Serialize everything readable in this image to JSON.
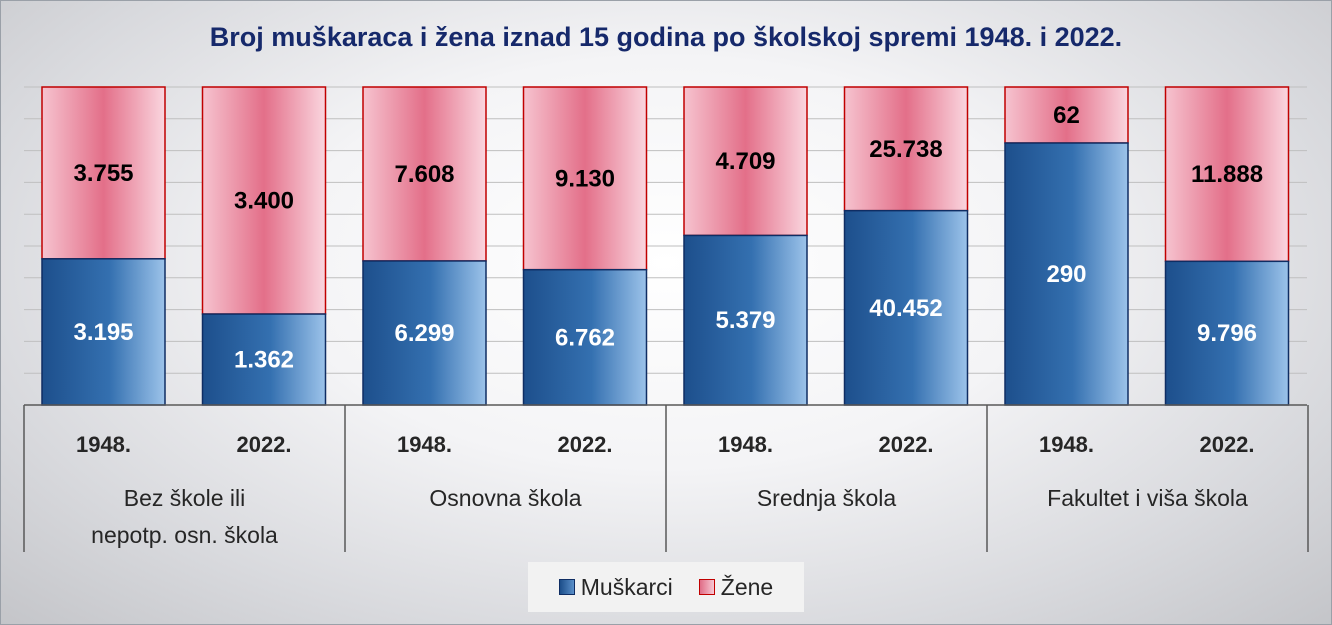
{
  "chart_data": {
    "type": "bar",
    "stacked": true,
    "normalized": true,
    "title": "Broj muškaraca i žena iznad 15 godina po školskoj spremi 1948. i 2022.",
    "groups": [
      {
        "label": "Bez škole ili nepotp. osn. škola",
        "label_lines": [
          "Bez škole ili",
          "nepotp. osn. škola"
        ],
        "categories": [
          "1948.",
          "2022."
        ]
      },
      {
        "label": "Osnovna škola",
        "label_lines": [
          "Osnovna škola"
        ],
        "categories": [
          "1948.",
          "2022."
        ]
      },
      {
        "label": "Srednja škola",
        "label_lines": [
          "Srednja škola"
        ],
        "categories": [
          "1948.",
          "2022."
        ]
      },
      {
        "label": "Fakultet i viša škola",
        "label_lines": [
          "Fakultet i viša škola"
        ],
        "categories": [
          "1948.",
          "2022."
        ]
      }
    ],
    "categories": [
      "1948.",
      "2022.",
      "1948.",
      "2022.",
      "1948.",
      "2022.",
      "1948.",
      "2022."
    ],
    "series": [
      {
        "name": "Muškarci",
        "values": [
          3195,
          1362,
          6299,
          6762,
          5379,
          40452,
          290,
          9796
        ],
        "labels": [
          "3.195",
          "1.362",
          "6.299",
          "6.762",
          "5.379",
          "40.452",
          "290",
          "9.796"
        ]
      },
      {
        "name": "Žene",
        "values": [
          3755,
          3400,
          7608,
          9130,
          4709,
          25738,
          62,
          11888
        ],
        "labels": [
          "3.755",
          "3.400",
          "7.608",
          "9.130",
          "4.709",
          "25.738",
          "62",
          "11.888"
        ]
      }
    ],
    "legend_position": "bottom",
    "grid": true,
    "colors": {
      "men": "#2e6aa8",
      "men_light": "#8fb8e3",
      "men_border": "#0f2d63",
      "women": "#e06d87",
      "women_light": "#fad0da",
      "women_border": "#c00000"
    }
  }
}
